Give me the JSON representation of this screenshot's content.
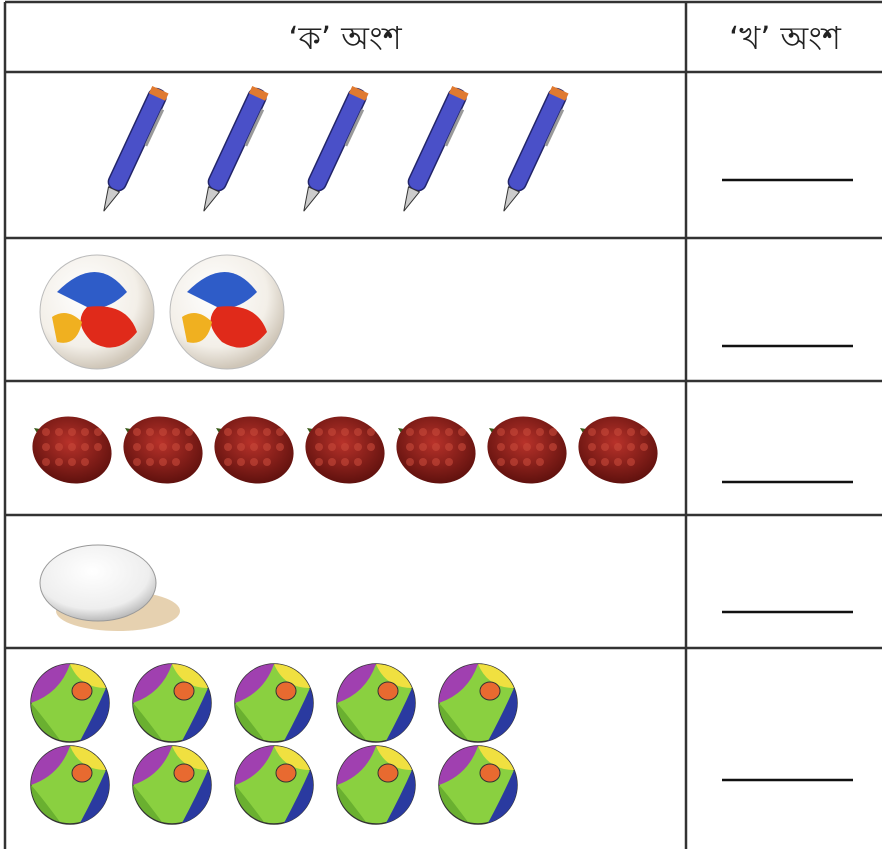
{
  "table": {
    "header": [
      "‘ক’ অংশ",
      "‘খ’ অংশ"
    ],
    "rows": [
      {
        "count": 5
      },
      {
        "count": 2
      },
      {
        "count": 7
      },
      {
        "count": 1
      },
      {
        "count": 10
      }
    ]
  }
}
